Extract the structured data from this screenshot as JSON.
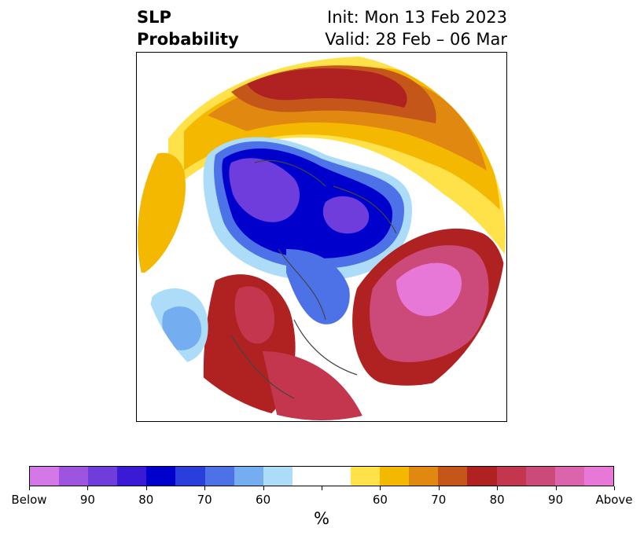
{
  "title": {
    "variable": "SLP",
    "subtitle": "Probability",
    "init": "Init: Mon 13 Feb 2023",
    "valid": "Valid: 28 Feb – 06 Mar"
  },
  "map": {
    "projection": "north-polar-stereographic",
    "anomalies": [
      {
        "region": "north-pacific-aleutians",
        "sign": "above",
        "level": "80-Above"
      },
      {
        "region": "eastern-siberia-arctic",
        "sign": "below",
        "level": "90-Below"
      },
      {
        "region": "north-atlantic-greenland",
        "sign": "above",
        "level": "Above"
      },
      {
        "region": "hawaii-subtropical-pacific",
        "sign": "below",
        "level": "70"
      },
      {
        "region": "western-us-mexico",
        "sign": "above",
        "level": "80"
      },
      {
        "region": "central-europe-russia",
        "sign": "above",
        "level": "60-80"
      }
    ]
  },
  "colorbar": {
    "units": "%",
    "colors": [
      "#d478e8",
      "#9d55e0",
      "#6e3ddb",
      "#3b1ad6",
      "#0000cd",
      "#2a3edc",
      "#4d72e8",
      "#75aef0",
      "#addcf8",
      "#ffffff",
      "#ffffff",
      "#ffe24a",
      "#f4b800",
      "#e08810",
      "#c4561a",
      "#b02222",
      "#c3364d",
      "#cc4a7a",
      "#dc64ad",
      "#e878d8"
    ],
    "tick_labels": [
      "Below",
      "90",
      "80",
      "70",
      "60",
      "",
      "60",
      "70",
      "80",
      "90",
      "Above"
    ]
  }
}
